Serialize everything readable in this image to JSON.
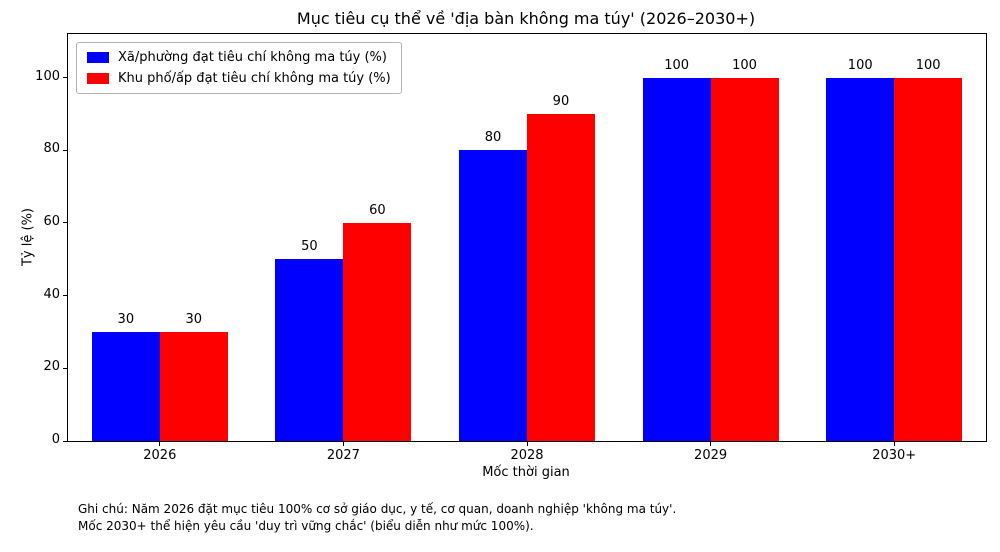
{
  "chart_data": {
    "type": "bar",
    "title": "Mục tiêu cụ thể về 'địa bàn không ma túy' (2026–2030+)",
    "categories": [
      "2026",
      "2027",
      "2028",
      "2029",
      "2030+"
    ],
    "series": [
      {
        "name": "Xã/phường đạt tiêu chí không ma túy (%)",
        "color": "#0000ff",
        "values": [
          30,
          50,
          80,
          100,
          100
        ]
      },
      {
        "name": "Khu phố/ấp đạt tiêu chí không ma túy (%)",
        "color": "#ff0000",
        "values": [
          30,
          60,
          90,
          100,
          100
        ]
      }
    ],
    "xlabel": "Mốc thời gian",
    "ylabel": "Tỷ lệ (%)",
    "ylim": [
      0,
      112
    ],
    "yticks": [
      0,
      20,
      40,
      60,
      80,
      100
    ],
    "legend_position": "upper left",
    "grid": false
  },
  "footnote": {
    "line1": "Ghi chú: Năm 2026 đặt mục tiêu 100% cơ sở giáo dục, y tế, cơ quan, doanh nghiệp 'không ma túy'.",
    "line2": "Mốc 2030+ thể hiện yêu cầu 'duy trì vững chắc' (biểu diễn như mức 100%)."
  }
}
